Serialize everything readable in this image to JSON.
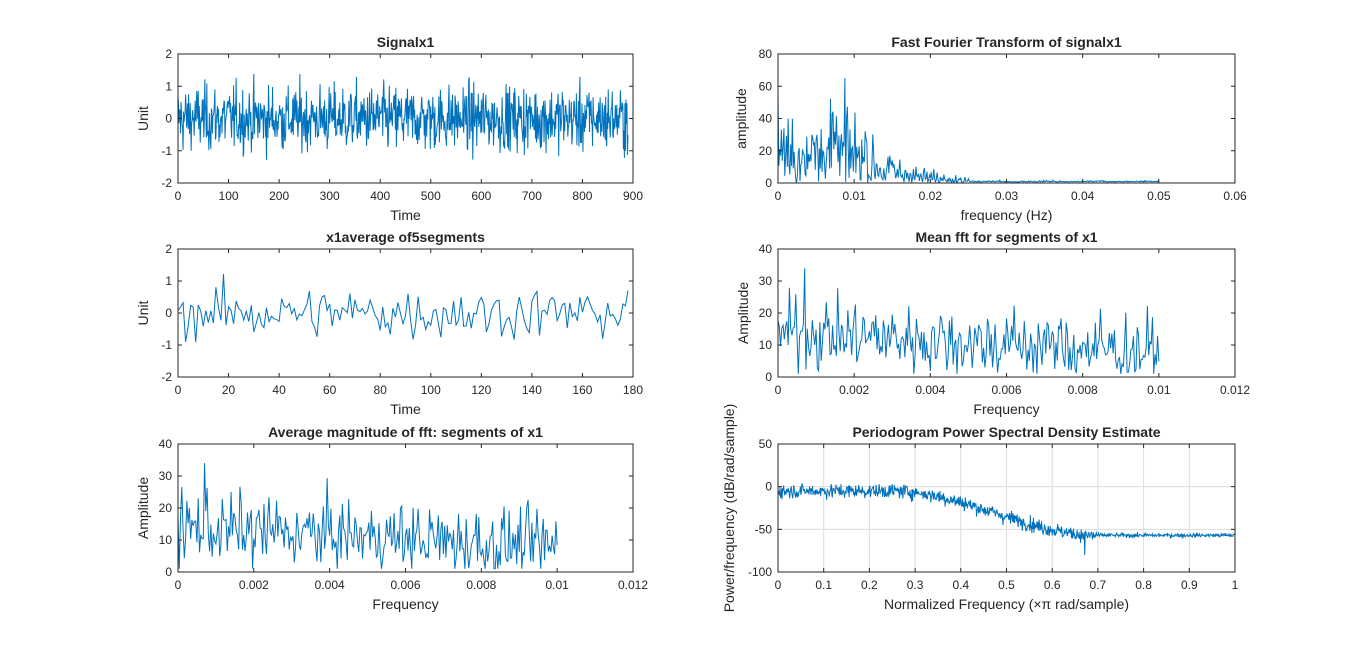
{
  "window": {
    "title": ""
  },
  "chart_data": [
    {
      "type": "line",
      "title": "Signalx1",
      "xlabel": "Time",
      "ylabel": "Unit",
      "xlim": [
        0,
        900
      ],
      "ylim": [
        -2,
        2
      ],
      "xticks": [
        0,
        100,
        200,
        300,
        400,
        500,
        600,
        700,
        800,
        900
      ],
      "yticks": [
        -2,
        -1,
        0,
        1,
        2
      ],
      "grid": false,
      "series": [
        {
          "color": "#0072bd",
          "description": "noise signal, mean 0, amplitude about ±1.3, x from 0 to 890",
          "x_range": [
            0,
            890
          ],
          "y_range": [
            -1.35,
            1.5
          ]
        }
      ]
    },
    {
      "type": "line",
      "title": "Fast Fourier Transform of signalx1",
      "xlabel": "frequency (Hz)",
      "ylabel": "amplitude",
      "xlim": [
        0,
        0.06
      ],
      "ylim": [
        0,
        80
      ],
      "xticks": [
        0,
        0.01,
        0.02,
        0.03,
        0.04,
        0.05,
        0.06
      ],
      "yticks": [
        0,
        20,
        40,
        60,
        80
      ],
      "grid": false,
      "series": [
        {
          "color": "#0072bd",
          "x_range": [
            0,
            0.05
          ],
          "y_range": [
            0,
            65
          ],
          "peak": {
            "x": 0.0088,
            "y": 65
          }
        }
      ]
    },
    {
      "type": "line",
      "title": "x1average of5segments",
      "xlabel": "Time",
      "ylabel": "Unit",
      "xlim": [
        0,
        180
      ],
      "ylim": [
        -2,
        2
      ],
      "xticks": [
        0,
        20,
        40,
        60,
        80,
        100,
        120,
        140,
        160,
        180
      ],
      "yticks": [
        -2,
        -1,
        0,
        1,
        2
      ],
      "grid": false,
      "series": [
        {
          "color": "#0072bd",
          "x_range": [
            0,
            178
          ],
          "y_range": [
            -1.0,
            1.25
          ]
        }
      ]
    },
    {
      "type": "line",
      "title": "Mean fft for segments of x1",
      "xlabel": "Frequency",
      "ylabel": "Amplitude",
      "xlim": [
        0,
        0.012
      ],
      "ylim": [
        0,
        40
      ],
      "xticks": [
        0,
        0.002,
        0.004,
        0.006,
        0.008,
        0.01,
        0.012
      ],
      "yticks": [
        0,
        10,
        20,
        30,
        40
      ],
      "grid": false,
      "series": [
        {
          "color": "#0072bd",
          "x_range": [
            0,
            0.01
          ],
          "y_range": [
            1,
            34
          ],
          "peak": {
            "x": 0.0007,
            "y": 34
          }
        }
      ]
    },
    {
      "type": "line",
      "title": "Average magnitude of fft: segments of x1",
      "xlabel": "Frequency",
      "ylabel": "Amplitude",
      "xlim": [
        0,
        0.012
      ],
      "ylim": [
        0,
        40
      ],
      "xticks": [
        0,
        0.002,
        0.004,
        0.006,
        0.008,
        0.01,
        0.012
      ],
      "yticks": [
        0,
        10,
        20,
        30,
        40
      ],
      "grid": false,
      "series": [
        {
          "color": "#0072bd",
          "x_range": [
            0,
            0.01
          ],
          "y_range": [
            1,
            34
          ],
          "peak": {
            "x": 0.0007,
            "y": 34
          }
        }
      ]
    },
    {
      "type": "line",
      "title": "Periodogram Power Spectral Density Estimate",
      "xlabel": "Normalized Frequency  (×π rad/sample)",
      "ylabel": "Power/frequency (dB/rad/sample)",
      "xlim": [
        0,
        1
      ],
      "ylim": [
        -100,
        50
      ],
      "xticks": [
        0,
        0.1,
        0.2,
        0.3,
        0.4,
        0.5,
        0.6,
        0.7,
        0.8,
        0.9,
        1
      ],
      "yticks": [
        -100,
        -50,
        0,
        50
      ],
      "grid": true,
      "series": [
        {
          "color": "#0072bd",
          "x_range": [
            0,
            1
          ],
          "y_range": [
            -80,
            3
          ],
          "shape": "flat near -5 dB to 0.25, falling to about -57 dB at 0.7, flat to 1"
        }
      ]
    }
  ]
}
